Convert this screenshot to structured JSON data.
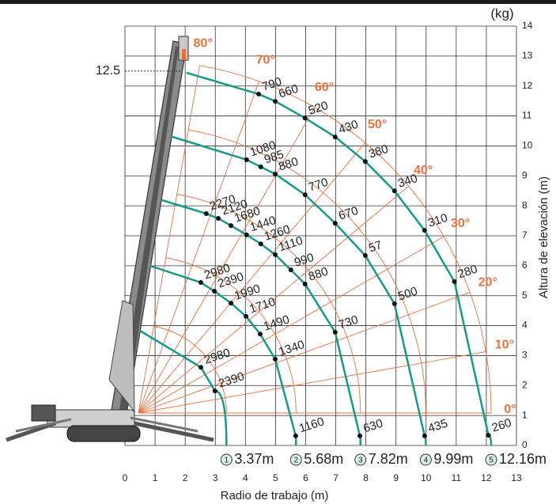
{
  "chart_data": {
    "type": "load-chart",
    "unit": "(kg)",
    "xlabel": "Radio de trabajo (m)",
    "ylabel": "Altura de elevación (m)",
    "xlim": [
      0,
      13
    ],
    "ylim": [
      0,
      14
    ],
    "xticks": [
      0,
      1,
      2,
      3,
      4,
      5,
      6,
      7,
      8,
      9,
      10,
      11,
      12,
      13
    ],
    "yticks": [
      0,
      1,
      2,
      3,
      4,
      5,
      6,
      7,
      8,
      9,
      10,
      11,
      12,
      13,
      14
    ],
    "grid": true,
    "height_mark": {
      "value": 12.5,
      "label": "12.5"
    },
    "angle_color": "#e8703c",
    "angles": [
      {
        "value": 0,
        "label": "0°"
      },
      {
        "value": 10,
        "label": "10°"
      },
      {
        "value": 20,
        "label": "20°"
      },
      {
        "value": 30,
        "label": "30°"
      },
      {
        "value": 40,
        "label": "40°"
      },
      {
        "value": 50,
        "label": "50°"
      },
      {
        "value": 60,
        "label": "60°"
      },
      {
        "value": 70,
        "label": "70°"
      },
      {
        "value": 80,
        "label": "80°"
      }
    ],
    "booms": [
      {
        "number": 1,
        "radius": {
          "value": 3.37,
          "label": "3.37m"
        },
        "color": "#16998a",
        "x": [
          2.52,
          2.99
        ],
        "y": [
          2.61,
          1.82
        ],
        "loads": [
          2980,
          2390
        ]
      },
      {
        "number": 2,
        "radius": {
          "value": 5.68,
          "label": "5.68m"
        },
        "color": "#16998a",
        "x": [
          2.52,
          2.97,
          3.52,
          4.02,
          4.49,
          4.99,
          5.67
        ],
        "y": [
          5.44,
          5.15,
          4.75,
          4.31,
          3.72,
          2.88,
          0.32
        ],
        "loads": [
          2980,
          2390,
          1990,
          1710,
          1490,
          1340,
          1160
        ]
      },
      {
        "number": 3,
        "radius": {
          "value": 7.82,
          "label": "7.82m"
        },
        "color": "#16998a",
        "x": [
          2.7,
          3.1,
          3.52,
          4.04,
          4.51,
          4.99,
          5.51,
          5.98,
          6.98,
          7.8
        ],
        "y": [
          7.74,
          7.58,
          7.34,
          7.03,
          6.73,
          6.37,
          5.86,
          5.39,
          3.78,
          0.32
        ],
        "loads": [
          2270,
          2120,
          1680,
          1440,
          1260,
          1110,
          990,
          880,
          730,
          630
        ]
      },
      {
        "number": 4,
        "radius": {
          "value": 9.99,
          "label": "9.99m"
        },
        "color": "#16998a",
        "x": [
          4.04,
          4.51,
          4.99,
          5.98,
          6.98,
          7.98,
          8.95,
          9.95
        ],
        "y": [
          9.54,
          9.3,
          9.06,
          8.37,
          7.42,
          6.34,
          4.73,
          0.32
        ],
        "loads": [
          1080,
          985,
          880,
          770,
          670,
          57,
          500,
          435
        ]
      },
      {
        "number": 5,
        "radius": {
          "value": 12.16,
          "label": "12.16m"
        },
        "color": "#16998a",
        "x": [
          4.44,
          4.99,
          5.98,
          6.98,
          7.98,
          8.95,
          9.95,
          10.94,
          12.07
        ],
        "y": [
          11.73,
          11.49,
          10.93,
          10.3,
          9.48,
          8.5,
          7.18,
          5.47,
          0.34
        ],
        "loads": [
          790,
          660,
          520,
          430,
          380,
          340,
          310,
          280,
          260
        ]
      }
    ]
  }
}
